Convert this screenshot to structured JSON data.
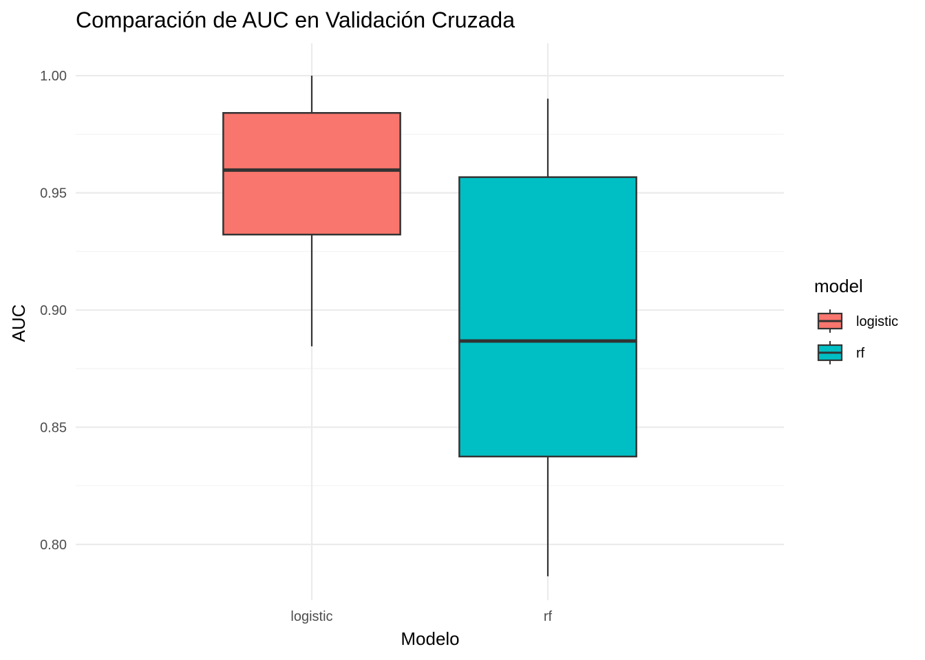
{
  "chart_data": {
    "type": "boxplot",
    "title": "Comparación de AUC en Validación Cruzada",
    "xlabel": "Modelo",
    "ylabel": "AUC",
    "ylim": [
      0.7762,
      1.0138
    ],
    "y_ticks": [
      0.8,
      0.85,
      0.9,
      0.95,
      1.0
    ],
    "y_tick_labels": [
      "0.80",
      "0.85",
      "0.90",
      "0.95",
      "1.00"
    ],
    "y_minor_ticks": [
      0.825,
      0.875,
      0.925,
      0.975
    ],
    "grid": true,
    "categories": [
      "logistic",
      "rf"
    ],
    "series": [
      {
        "name": "logistic",
        "color": "#F8766D",
        "min": 0.8845,
        "q1": 0.9322,
        "median": 0.9597,
        "q3": 0.9841,
        "max": 1.0
      },
      {
        "name": "rf",
        "color": "#00BFC4",
        "min": 0.7864,
        "q1": 0.8375,
        "median": 0.8868,
        "q3": 0.9567,
        "max": 0.9902
      }
    ],
    "legend": {
      "title": "model",
      "position": "right",
      "entries": [
        "logistic",
        "rf"
      ]
    }
  }
}
